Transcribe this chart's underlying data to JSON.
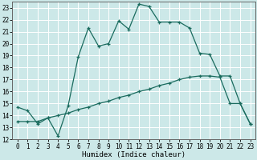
{
  "xlabel": "Humidex (Indice chaleur)",
  "xlim": [
    -0.5,
    23.5
  ],
  "ylim": [
    12,
    23.5
  ],
  "yticks": [
    12,
    13,
    14,
    15,
    16,
    17,
    18,
    19,
    20,
    21,
    22,
    23
  ],
  "xticks": [
    0,
    1,
    2,
    3,
    4,
    5,
    6,
    7,
    8,
    9,
    10,
    11,
    12,
    13,
    14,
    15,
    16,
    17,
    18,
    19,
    20,
    21,
    22,
    23
  ],
  "bg_color": "#cce8e8",
  "grid_color": "#ffffff",
  "line_color": "#1a6b5e",
  "line1_x": [
    0,
    1,
    2,
    3,
    4,
    5,
    6,
    7,
    8,
    9,
    10,
    11,
    12,
    13,
    14,
    15,
    16,
    17,
    18,
    19,
    20,
    21,
    22,
    23
  ],
  "line1_y": [
    14.7,
    14.4,
    13.3,
    13.8,
    12.3,
    14.8,
    18.9,
    21.3,
    19.8,
    20.0,
    21.9,
    21.2,
    23.3,
    23.1,
    21.8,
    21.8,
    21.8,
    21.3,
    19.2,
    19.1,
    17.3,
    17.3,
    15.0,
    13.3
  ],
  "line2_x": [
    0,
    1,
    2,
    3,
    4,
    5,
    6,
    7,
    8,
    9,
    10,
    11,
    12,
    13,
    14,
    15,
    16,
    17,
    18,
    19,
    20,
    21,
    22,
    23
  ],
  "line2_y": [
    13.5,
    13.5,
    13.5,
    13.8,
    14.0,
    14.2,
    14.5,
    14.7,
    15.0,
    15.2,
    15.5,
    15.7,
    16.0,
    16.2,
    16.5,
    16.7,
    17.0,
    17.2,
    17.3,
    17.3,
    17.2,
    15.0,
    15.0,
    13.3
  ],
  "tick_fontsize": 5.5,
  "xlabel_fontsize": 6.5
}
